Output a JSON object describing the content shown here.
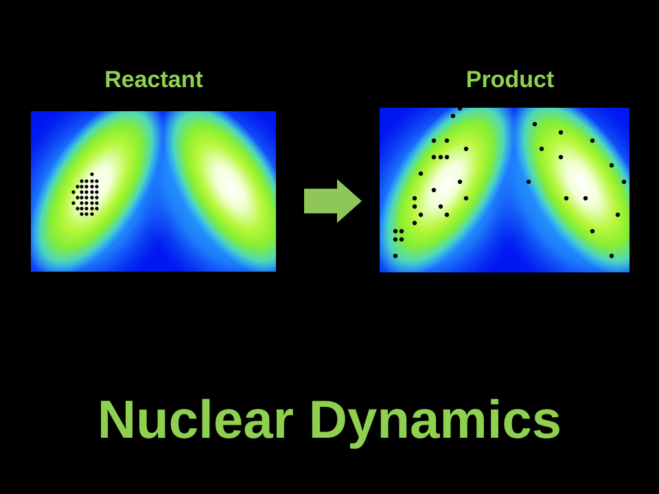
{
  "labels": {
    "reactant": "Reactant",
    "product": "Product"
  },
  "title": "Nuclear Dynamics",
  "colors": {
    "text_green": "#8fd14f",
    "arrow_green": "#8fc65a",
    "background": "#000000",
    "surface_blue": "#0018f0",
    "surface_cyan": "#39c9ff",
    "surface_green": "#9cf52a",
    "surface_white": "#ffffff",
    "particle": "#000000"
  },
  "icons": {
    "arrow": "arrow-right-icon"
  }
}
